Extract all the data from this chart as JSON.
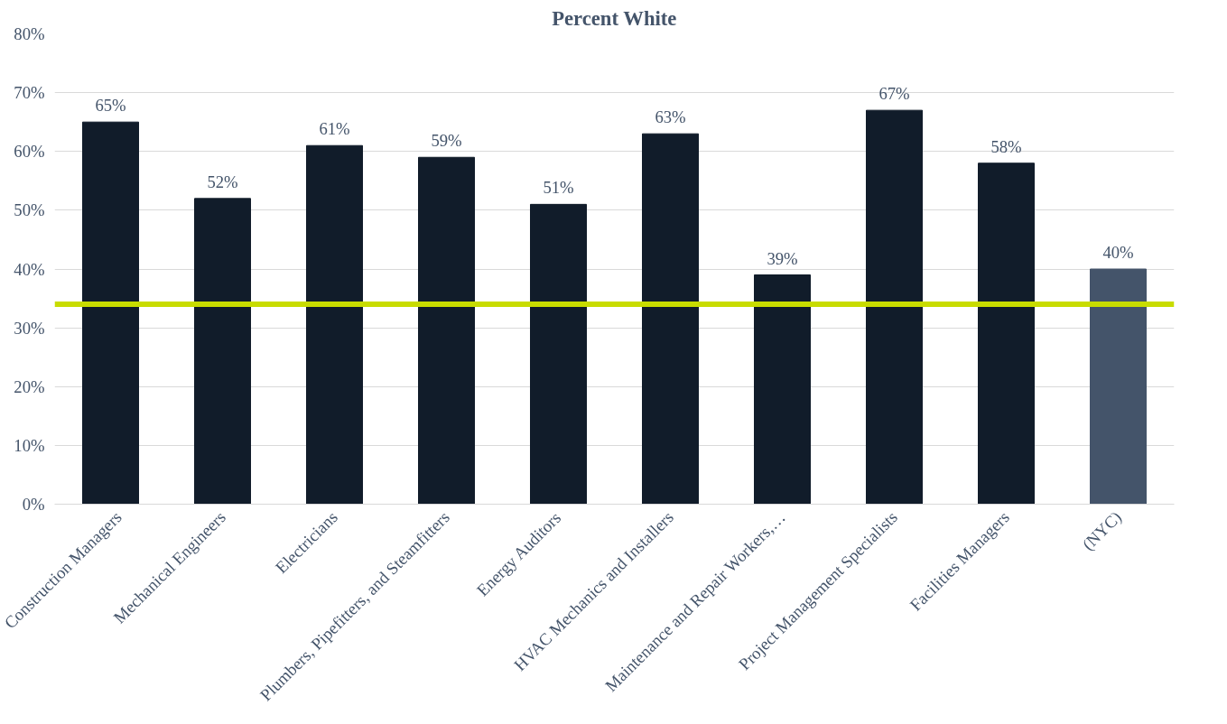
{
  "chart_data": {
    "type": "bar",
    "title": "Percent White",
    "categories": [
      "Construction Managers",
      "Mechanical Engineers",
      "Electricians",
      "Plumbers, Pipefitters, and Steamfitters",
      "Energy Auditors",
      "HVAC Mechanics and Installers",
      "Maintenance and Repair Workers,…",
      "Project Management Specialists",
      "Facilities Managers",
      "(NYC)"
    ],
    "values": [
      65,
      52,
      61,
      59,
      51,
      63,
      39,
      67,
      58,
      40
    ],
    "colors": [
      "#111c2a",
      "#111c2a",
      "#111c2a",
      "#111c2a",
      "#111c2a",
      "#111c2a",
      "#111c2a",
      "#111c2a",
      "#111c2a",
      "#44546a"
    ],
    "value_labels": [
      "65%",
      "52%",
      "61%",
      "59%",
      "51%",
      "63%",
      "39%",
      "67%",
      "58%",
      "40%"
    ],
    "ylim": [
      0,
      80
    ],
    "yticks": [
      {
        "value": 0,
        "label": "0%"
      },
      {
        "value": 10,
        "label": "10%"
      },
      {
        "value": 20,
        "label": "20%"
      },
      {
        "value": 30,
        "label": "30%"
      },
      {
        "value": 40,
        "label": "40%"
      },
      {
        "value": 50,
        "label": "50%"
      },
      {
        "value": 60,
        "label": "60%"
      },
      {
        "value": 70,
        "label": "70%"
      },
      {
        "value": 80,
        "label": "80%"
      }
    ],
    "ref_lines": [
      {
        "axis": "y",
        "value": 34,
        "color": "#c8dc00"
      }
    ],
    "grid": "y"
  }
}
